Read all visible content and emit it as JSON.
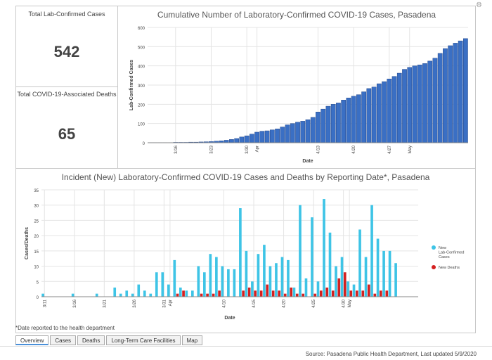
{
  "stats": {
    "cases_label": "Total Lab-Confirmed Cases",
    "cases_value": "542",
    "deaths_label": "Total COVID-19-Associated Deaths",
    "deaths_value": "65"
  },
  "footnote": "*Date reported to the health department",
  "source": "Source:  Pasadena Public Health Department, Last updated 5/9/2020",
  "tabs": [
    "Overview",
    "Cases",
    "Deaths",
    "Long-Term Care Facilities",
    "Map"
  ],
  "active_tab": 0,
  "icons": {
    "corner": "gear-icon"
  },
  "colors": {
    "cumulative": "#3a6fc4",
    "new_cases": "#3ec4e6",
    "new_deaths": "#d42020"
  },
  "chart_data": [
    {
      "type": "bar",
      "title": "Cumulative Number of Laboratory-Confirmed COVID-19 Cases, Pasadena",
      "xlabel": "Date",
      "ylabel": "Lab-Confirmed Cases",
      "ylim": [
        0,
        600
      ],
      "yticks": [
        0,
        100,
        200,
        300,
        400,
        500,
        600
      ],
      "x_start": "3/11",
      "xticks": [
        {
          "label": "3/16",
          "day": 5
        },
        {
          "label": "3/23",
          "day": 12
        },
        {
          "label": "3/30",
          "day": 19
        },
        {
          "label": "Apr",
          "day": 21
        },
        {
          "label": "4/13",
          "day": 33
        },
        {
          "label": "4/20",
          "day": 40
        },
        {
          "label": "4/27",
          "day": 47
        },
        {
          "label": "May",
          "day": 51
        }
      ],
      "grid": true,
      "values": [
        1,
        1,
        1,
        1,
        1,
        2,
        2,
        2,
        3,
        3,
        4,
        5,
        6,
        8,
        10,
        13,
        17,
        22,
        30,
        36,
        45,
        55,
        60,
        62,
        67,
        72,
        82,
        93,
        100,
        107,
        112,
        120,
        132,
        160,
        175,
        190,
        200,
        207,
        222,
        233,
        242,
        250,
        265,
        282,
        290,
        307,
        318,
        332,
        345,
        362,
        382,
        392,
        400,
        405,
        412,
        425,
        440,
        465,
        490,
        505,
        518,
        530,
        542
      ]
    },
    {
      "type": "bar",
      "title": "Incident (New) Laboratory-Confirmed COVID-19 Cases and Deaths by Reporting Date*, Pasadena",
      "xlabel": "Date",
      "ylabel": "Cases/Deaths",
      "ylim": [
        0,
        35
      ],
      "yticks": [
        0,
        5,
        10,
        15,
        20,
        25,
        30,
        35
      ],
      "x_start": "3/11",
      "xticks": [
        {
          "label": "3/11",
          "day": 0
        },
        {
          "label": "3/16",
          "day": 5
        },
        {
          "label": "3/21",
          "day": 10
        },
        {
          "label": "3/26",
          "day": 15
        },
        {
          "label": "3/31",
          "day": 20
        },
        {
          "label": "Apr",
          "day": 21
        },
        {
          "label": "4/10",
          "day": 30
        },
        {
          "label": "4/15",
          "day": 35
        },
        {
          "label": "4/20",
          "day": 40
        },
        {
          "label": "4/25",
          "day": 45
        },
        {
          "label": "4/30",
          "day": 50
        },
        {
          "label": "May",
          "day": 51
        }
      ],
      "grid": true,
      "legend_position": "right",
      "series": [
        {
          "name": "New Lab-Confirmed Cases",
          "values": [
            1,
            0,
            0,
            0,
            0,
            1,
            0,
            0,
            0,
            1,
            0,
            0,
            3,
            1,
            2,
            1,
            4,
            2,
            1,
            8,
            8,
            4,
            12,
            3,
            2,
            2,
            10,
            8,
            14,
            13,
            10,
            9,
            9,
            29,
            15,
            5,
            14,
            17,
            10,
            11,
            13,
            12,
            3,
            30,
            6,
            26,
            5,
            32,
            21,
            10,
            13,
            5,
            4,
            22,
            13,
            30,
            19,
            15,
            15,
            11,
            0,
            0,
            0
          ]
        },
        {
          "name": "New Deaths",
          "values": [
            0,
            0,
            0,
            0,
            0,
            0,
            0,
            0,
            0,
            0,
            0,
            0,
            0,
            0,
            0,
            0,
            0,
            0,
            0,
            0,
            0,
            0,
            1,
            2,
            0,
            0,
            1,
            1,
            1,
            2,
            0,
            0,
            0,
            2,
            3,
            2,
            2,
            4,
            2,
            2,
            1,
            3,
            1,
            1,
            0,
            1,
            2,
            3,
            2,
            6,
            8,
            2,
            2,
            2,
            4,
            1,
            2,
            2,
            0,
            0,
            0,
            0,
            0
          ]
        }
      ]
    }
  ]
}
